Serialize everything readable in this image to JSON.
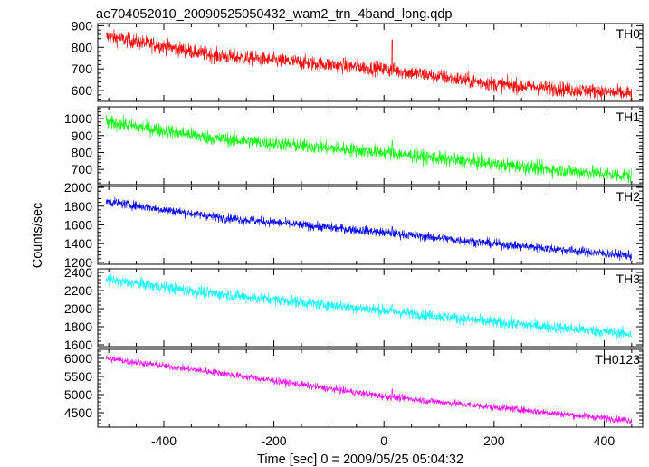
{
  "chart_data": {
    "type": "line",
    "title": "ae704052010_20090525050432_wam2_trn_4band_long.qdp",
    "xlabel": "Time [sec] 0 = 2009/05/25 05:04:32",
    "ylabel": "Counts/sec",
    "xlim": [
      -520,
      470
    ],
    "x_ticks": [
      -400,
      -200,
      0,
      200,
      400
    ],
    "x_range_data": [
      -505,
      450
    ],
    "grid": false,
    "panels": [
      {
        "name": "TH0",
        "color": "#ff0000",
        "ylim": [
          550,
          910
        ],
        "y_ticks": [
          600,
          700,
          800,
          900
        ],
        "trend": [
          [
            -505,
            850
          ],
          [
            -300,
            760
          ],
          [
            0,
            700
          ],
          [
            200,
            630
          ],
          [
            450,
            585
          ]
        ],
        "noise": 25,
        "spike": {
          "x": 15,
          "y": 835
        }
      },
      {
        "name": "TH1",
        "color": "#00ff00",
        "ylim": [
          610,
          1070
        ],
        "y_ticks": [
          700,
          800,
          900,
          1000
        ],
        "trend": [
          [
            -505,
            980
          ],
          [
            -300,
            880
          ],
          [
            0,
            800
          ],
          [
            200,
            730
          ],
          [
            450,
            660
          ]
        ],
        "noise": 30,
        "spike": {
          "x": 15,
          "y": 870
        }
      },
      {
        "name": "TH2",
        "color": "#0000ff",
        "ylim": [
          1180,
          2010
        ],
        "y_ticks": [
          1200,
          1400,
          1600,
          1800,
          2000
        ],
        "trend": [
          [
            -505,
            1850
          ],
          [
            -300,
            1680
          ],
          [
            0,
            1520
          ],
          [
            200,
            1400
          ],
          [
            450,
            1270
          ]
        ],
        "noise": 35,
        "spike": {
          "x": 15,
          "y": 1580
        }
      },
      {
        "name": "TH3",
        "color": "#00ffff",
        "ylim": [
          1580,
          2440
        ],
        "y_ticks": [
          1600,
          1800,
          2000,
          2200,
          2400
        ],
        "trend": [
          [
            -505,
            2320
          ],
          [
            -300,
            2160
          ],
          [
            0,
            1980
          ],
          [
            200,
            1850
          ],
          [
            450,
            1720
          ]
        ],
        "noise": 45,
        "spike": {
          "x": 15,
          "y": 2050
        }
      },
      {
        "name": "TH0123",
        "color": "#ff00ff",
        "ylim": [
          4100,
          6250
        ],
        "y_ticks": [
          4500,
          5000,
          5500,
          6000
        ],
        "trend": [
          [
            -505,
            6000
          ],
          [
            -300,
            5600
          ],
          [
            0,
            4950
          ],
          [
            200,
            4650
          ],
          [
            450,
            4280
          ]
        ],
        "noise": 70,
        "spike": {
          "x": 15,
          "y": 5150
        }
      }
    ]
  }
}
